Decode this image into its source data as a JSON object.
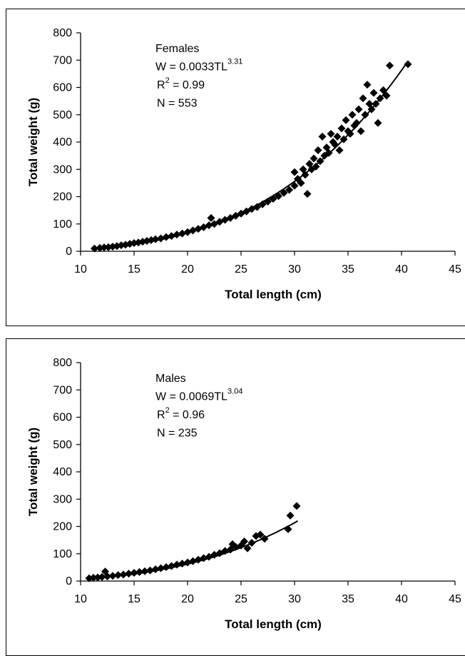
{
  "chart_data": [
    {
      "type": "scatter",
      "panel": "Females",
      "xlabel": "Total length (cm)",
      "ylabel": "Total weight (g)",
      "xlim": [
        10,
        45
      ],
      "ylim": [
        0,
        800
      ],
      "xticks": [
        10,
        15,
        20,
        25,
        30,
        35,
        40,
        45
      ],
      "yticks": [
        0,
        100,
        200,
        300,
        400,
        500,
        600,
        700,
        800
      ],
      "annotation": {
        "group": "Females",
        "equation_base": "W = 0.0033TL",
        "equation_exp": "3.31",
        "r2_prefix": "R",
        "r2_sup": "2",
        "r2_value": " = 0.99",
        "n": "N = 553"
      },
      "fit": {
        "a": 0.0033,
        "b": 3.31,
        "x_range": [
          11.3,
          40.6
        ]
      },
      "marker": "diamond",
      "marker_color": "#000000",
      "points": [
        [
          11.3,
          10
        ],
        [
          11.8,
          12
        ],
        [
          12.2,
          14
        ],
        [
          12.6,
          15
        ],
        [
          13.0,
          17
        ],
        [
          13.4,
          19
        ],
        [
          13.8,
          22
        ],
        [
          14.2,
          24
        ],
        [
          14.6,
          27
        ],
        [
          15.0,
          30
        ],
        [
          15.4,
          32
        ],
        [
          15.8,
          35
        ],
        [
          16.2,
          38
        ],
        [
          16.6,
          41
        ],
        [
          17.0,
          44
        ],
        [
          17.5,
          47
        ],
        [
          18.0,
          52
        ],
        [
          18.5,
          56
        ],
        [
          19.0,
          61
        ],
        [
          19.5,
          65
        ],
        [
          20.0,
          70
        ],
        [
          20.5,
          76
        ],
        [
          21.0,
          82
        ],
        [
          21.5,
          88
        ],
        [
          22.0,
          95
        ],
        [
          22.2,
          122
        ],
        [
          22.5,
          100
        ],
        [
          23.0,
          108
        ],
        [
          23.5,
          115
        ],
        [
          24.0,
          122
        ],
        [
          24.5,
          130
        ],
        [
          25.0,
          138
        ],
        [
          25.5,
          146
        ],
        [
          26.0,
          155
        ],
        [
          26.5,
          162
        ],
        [
          27.0,
          172
        ],
        [
          27.5,
          182
        ],
        [
          28.0,
          192
        ],
        [
          28.5,
          202
        ],
        [
          29.0,
          214
        ],
        [
          29.5,
          225
        ],
        [
          30.0,
          240
        ],
        [
          30.0,
          290
        ],
        [
          30.3,
          265
        ],
        [
          30.6,
          250
        ],
        [
          30.8,
          300
        ],
        [
          31.0,
          280
        ],
        [
          31.2,
          210
        ],
        [
          31.4,
          320
        ],
        [
          31.6,
          300
        ],
        [
          31.8,
          340
        ],
        [
          32.0,
          310
        ],
        [
          32.2,
          370
        ],
        [
          32.4,
          330
        ],
        [
          32.6,
          420
        ],
        [
          32.8,
          350
        ],
        [
          33.0,
          380
        ],
        [
          33.2,
          360
        ],
        [
          33.4,
          430
        ],
        [
          33.6,
          400
        ],
        [
          33.8,
          390
        ],
        [
          34.0,
          420
        ],
        [
          34.2,
          370
        ],
        [
          34.4,
          450
        ],
        [
          34.6,
          410
        ],
        [
          34.8,
          480
        ],
        [
          35.0,
          440
        ],
        [
          35.2,
          430
        ],
        [
          35.4,
          500
        ],
        [
          35.6,
          460
        ],
        [
          35.8,
          470
        ],
        [
          36.0,
          520
        ],
        [
          36.2,
          440
        ],
        [
          36.4,
          560
        ],
        [
          36.6,
          500
        ],
        [
          36.8,
          610
        ],
        [
          37.0,
          540
        ],
        [
          37.2,
          520
        ],
        [
          37.4,
          580
        ],
        [
          37.6,
          540
        ],
        [
          37.8,
          470
        ],
        [
          38.0,
          560
        ],
        [
          38.3,
          590
        ],
        [
          38.6,
          570
        ],
        [
          38.9,
          680
        ],
        [
          40.6,
          685
        ]
      ]
    },
    {
      "type": "scatter",
      "panel": "Males",
      "xlabel": "Total length (cm)",
      "ylabel": "Total weight (g)",
      "xlim": [
        10,
        45
      ],
      "ylim": [
        0,
        800
      ],
      "xticks": [
        10,
        15,
        20,
        25,
        30,
        35,
        40,
        45
      ],
      "yticks": [
        0,
        100,
        200,
        300,
        400,
        500,
        600,
        700,
        800
      ],
      "annotation": {
        "group": "Males",
        "equation_base": "W = 0.0069TL",
        "equation_exp": "3.04",
        "r2_prefix": "R",
        "r2_sup": "2",
        "r2_value": " = 0.96",
        "n": "N = 235"
      },
      "fit": {
        "a": 0.0069,
        "b": 3.04,
        "x_range": [
          10.8,
          30.3
        ]
      },
      "marker": "diamond",
      "marker_color": "#000000",
      "points": [
        [
          10.8,
          10
        ],
        [
          11.2,
          12
        ],
        [
          11.6,
          13
        ],
        [
          12.0,
          15
        ],
        [
          12.3,
          35
        ],
        [
          12.5,
          17
        ],
        [
          13.0,
          19
        ],
        [
          13.5,
          22
        ],
        [
          14.0,
          24
        ],
        [
          14.5,
          27
        ],
        [
          15.0,
          30
        ],
        [
          15.5,
          33
        ],
        [
          16.0,
          36
        ],
        [
          16.5,
          39
        ],
        [
          17.0,
          43
        ],
        [
          17.5,
          47
        ],
        [
          18.0,
          51
        ],
        [
          18.5,
          55
        ],
        [
          19.0,
          60
        ],
        [
          19.5,
          64
        ],
        [
          20.0,
          68
        ],
        [
          20.5,
          73
        ],
        [
          21.0,
          78
        ],
        [
          21.5,
          84
        ],
        [
          22.0,
          89
        ],
        [
          22.5,
          96
        ],
        [
          23.0,
          102
        ],
        [
          23.5,
          110
        ],
        [
          24.0,
          115
        ],
        [
          24.2,
          135
        ],
        [
          24.5,
          125
        ],
        [
          25.0,
          130
        ],
        [
          25.3,
          145
        ],
        [
          25.6,
          120
        ],
        [
          26.0,
          140
        ],
        [
          26.4,
          165
        ],
        [
          26.8,
          170
        ],
        [
          27.2,
          155
        ],
        [
          29.4,
          190
        ],
        [
          29.6,
          240
        ],
        [
          30.2,
          275
        ]
      ]
    }
  ]
}
